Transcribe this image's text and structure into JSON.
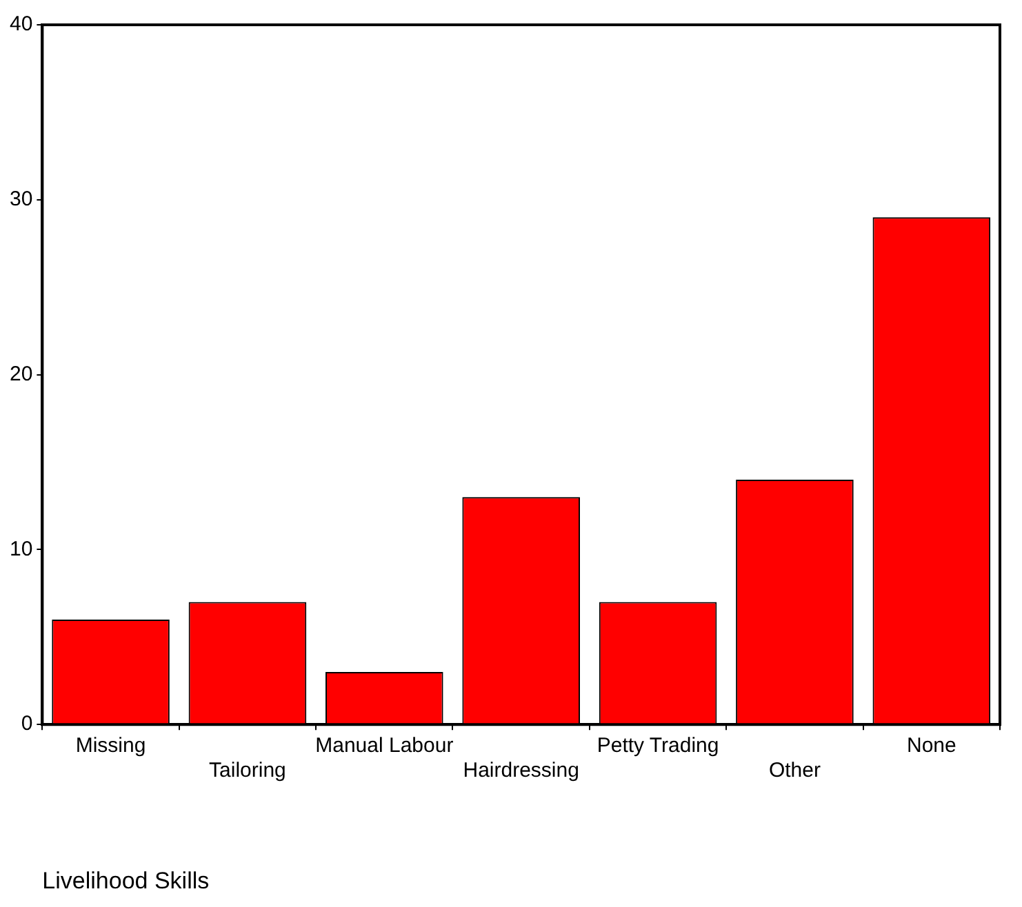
{
  "chart_data": {
    "type": "bar",
    "xlabel": "Livelihood Skills",
    "categories": [
      "Missing",
      "Tailoring",
      "Manual Labour",
      "Hairdressing",
      "Petty Trading",
      "Other",
      "None"
    ],
    "values": [
      6,
      7,
      3,
      13,
      7,
      14,
      29
    ],
    "color": "#ff0000",
    "ylim": [
      0,
      40
    ],
    "yticks": [
      0,
      10,
      20,
      30,
      40
    ],
    "grid": false,
    "legend": false
  }
}
